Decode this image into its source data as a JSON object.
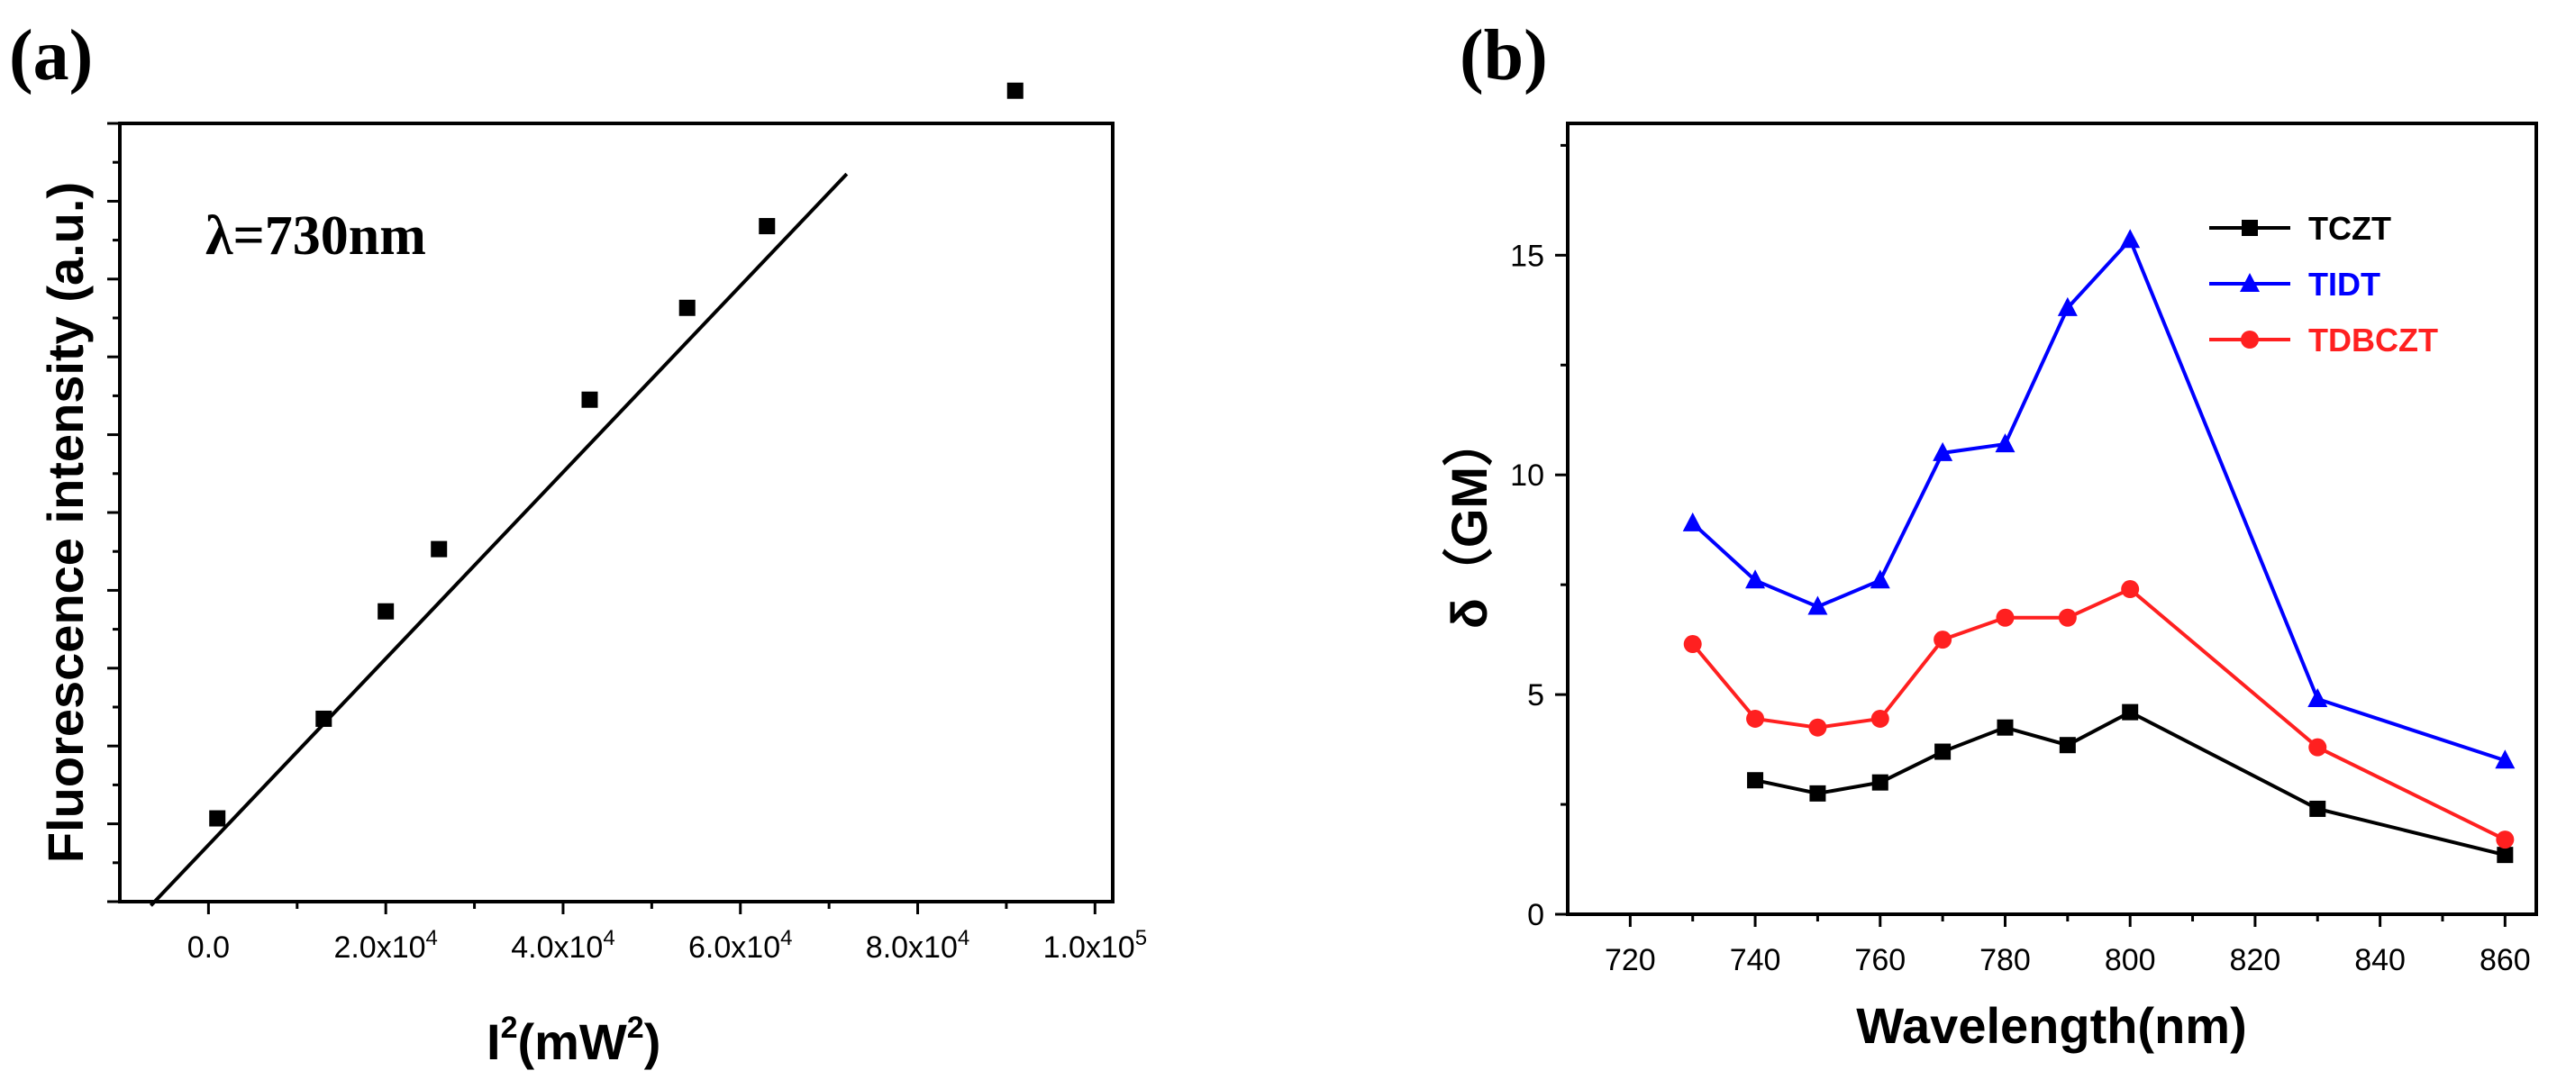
{
  "chart_data": [
    {
      "panel_label": "(a)",
      "type": "scatter",
      "xlabel_base": "I",
      "xlabel_sup": "2",
      "xlabel_unit_open": "(mW",
      "xlabel_unit_sup": "2",
      "xlabel_unit_close": ")",
      "ylabel": "Fluorescence intensity (a.u.)",
      "annotation": "λ=730nm",
      "xlim": [
        -10000,
        102000
      ],
      "ylim": [
        0,
        100
      ],
      "x_ticks": [
        {
          "value": 0,
          "label": "0.0"
        },
        {
          "value": 20000,
          "label": "2.0x10",
          "sup": "4"
        },
        {
          "value": 40000,
          "label": "4.0x10",
          "sup": "4"
        },
        {
          "value": 60000,
          "label": "6.0x10",
          "sup": "4"
        },
        {
          "value": 80000,
          "label": "8.0x10",
          "sup": "4"
        },
        {
          "value": 100000,
          "label": "1.0x10",
          "sup": "5"
        }
      ],
      "points": {
        "x": [
          1000,
          13000,
          20000,
          26000,
          43000,
          54000,
          63000,
          91000
        ],
        "y": [
          10.7,
          23.5,
          37.3,
          45.3,
          64.5,
          76.3,
          86.8,
          104.2
        ]
      },
      "fit_line": {
        "x": [
          -6500,
          72000
        ],
        "y": [
          -0.5,
          93.5
        ]
      }
    },
    {
      "panel_label": "(b)",
      "type": "line",
      "xlabel": "Wavelength(nm)",
      "ylabel_symbol": "δ",
      "ylabel_unit": "（GM）",
      "xlim": [
        710,
        865
      ],
      "ylim": [
        0,
        18
      ],
      "x_ticks": [
        720,
        740,
        760,
        780,
        800,
        820,
        840,
        860
      ],
      "y_ticks": [
        0,
        5,
        10,
        15
      ],
      "legend_position": "top-right",
      "series": [
        {
          "name": "TCZT",
          "color": "#000000",
          "marker": "square",
          "x": [
            740,
            750,
            760,
            770,
            780,
            790,
            800,
            830,
            860
          ],
          "y": [
            3.05,
            2.75,
            3.0,
            3.7,
            4.25,
            3.85,
            4.6,
            2.4,
            1.35
          ]
        },
        {
          "name": "TIDT",
          "color": "#0000ff",
          "marker": "triangle",
          "x": [
            730,
            740,
            750,
            760,
            770,
            780,
            790,
            800,
            830,
            860
          ],
          "y": [
            8.9,
            7.6,
            7.0,
            7.6,
            10.5,
            10.7,
            13.8,
            15.35,
            4.9,
            3.5
          ]
        },
        {
          "name": "TDBCZT",
          "color": "#ff2020",
          "marker": "circle",
          "x": [
            730,
            740,
            750,
            760,
            770,
            780,
            790,
            800,
            830,
            860
          ],
          "y": [
            6.15,
            4.45,
            4.25,
            4.45,
            6.25,
            6.75,
            6.75,
            7.4,
            3.8,
            1.7
          ]
        }
      ]
    }
  ]
}
